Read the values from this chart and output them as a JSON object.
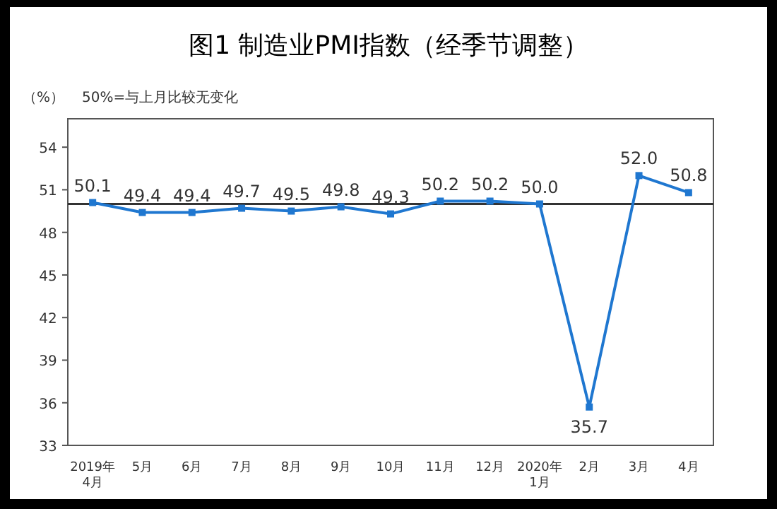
{
  "chart_data": {
    "type": "line",
    "title": "图1  制造业PMI指数（经季节调整）",
    "ylabel": "（%）",
    "annotations": [
      "50%=与上月比较无变化"
    ],
    "categories": [
      "2019年\n4月",
      "5月",
      "6月",
      "7月",
      "8月",
      "9月",
      "10月",
      "11月",
      "12月",
      "2020年\n1月",
      "2月",
      "3月",
      "4月"
    ],
    "series": [
      {
        "color": "#1f77d0",
        "values": [
          50.1,
          49.4,
          49.4,
          49.7,
          49.5,
          49.8,
          49.3,
          50.2,
          50.2,
          50.0,
          35.7,
          52.0,
          50.8
        ],
        "value_labels": [
          "50.1",
          "49.4",
          "49.4",
          "49.7",
          "49.5",
          "49.8",
          "49.3",
          "50.2",
          "50.2",
          "50.0",
          "35.7",
          "52.0",
          "50.8"
        ]
      }
    ],
    "ylim": [
      33,
      56
    ],
    "yticks": [
      33,
      36,
      39,
      42,
      45,
      48,
      51,
      54
    ],
    "ref_lines": [
      {
        "axis": "y",
        "value": 50,
        "color": "#333333"
      }
    ],
    "marker": "square",
    "grid": false
  }
}
